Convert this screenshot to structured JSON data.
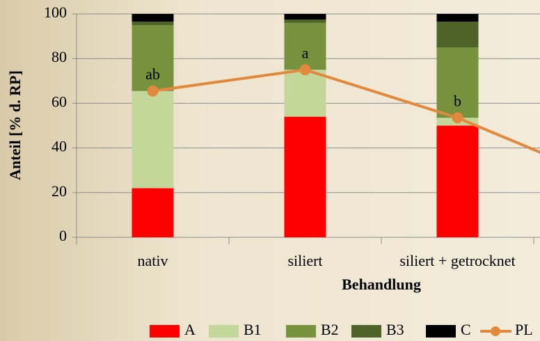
{
  "chart_data": {
    "type": "stacked_bar_line",
    "y_axis_label": "Anteil [% d. RP]",
    "x_axis_label": "Behandlung",
    "categories": [
      "nativ",
      "siliert",
      "siliert + getrocknet",
      null
    ],
    "series": [
      {
        "name": "A",
        "color": "#ff0000",
        "values": [
          22,
          54,
          50,
          null
        ]
      },
      {
        "name": "B1",
        "color": "#c4d79b",
        "values": [
          43.5,
          21,
          3.5,
          null
        ]
      },
      {
        "name": "B2",
        "color": "#76923c",
        "values": [
          29.5,
          21,
          31.5,
          null
        ]
      },
      {
        "name": "B3",
        "color": "#4f6228",
        "values": [
          1.5,
          1.5,
          11.5,
          null
        ]
      },
      {
        "name": "C",
        "color": "#000000",
        "values": [
          3.5,
          2.5,
          3.5,
          null
        ]
      },
      {
        "name": "PL",
        "color": "#e2893d",
        "type": "line",
        "values": [
          65.5,
          75,
          53.5,
          25
        ],
        "annotations": [
          "ab",
          "a",
          "b",
          null
        ]
      }
    ],
    "ylim": [
      0,
      100
    ],
    "yticks": [
      0,
      20,
      40,
      60,
      80,
      100
    ],
    "grid": true,
    "legend": "bottom"
  }
}
